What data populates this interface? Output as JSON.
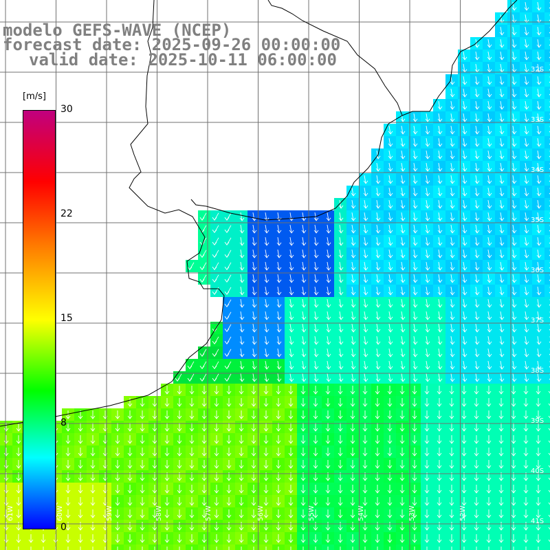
{
  "title": {
    "line1": "modelo GEFS-WAVE (NCEP)",
    "line2": "forecast date: 2025-09-26 00:00:00",
    "line3": "valid date: 2025-10-11 06:00:00"
  },
  "colorbar": {
    "unit": "[m/s]",
    "min": 0,
    "max": 30,
    "ticks": [
      "30",
      "22",
      "15",
      "8",
      "0"
    ],
    "tick_values": [
      30,
      22,
      15,
      8,
      0
    ],
    "colors": [
      "#0000ff",
      "#00ffff",
      "#00ff00",
      "#ffff00",
      "#ff8000",
      "#ff0000",
      "#c0007f"
    ]
  },
  "map": {
    "latitude_labels": [
      "32S",
      "33S",
      "34S",
      "35S",
      "36S",
      "37S",
      "38S",
      "39S",
      "40S",
      "41S"
    ],
    "longitude_labels": [
      "61W",
      "60W",
      "59W",
      "58W",
      "57W",
      "56W",
      "55W",
      "54W",
      "53W",
      "52W"
    ],
    "variable": "wind speed and direction",
    "prevailing_direction": "from north (arrows pointing south)"
  }
}
